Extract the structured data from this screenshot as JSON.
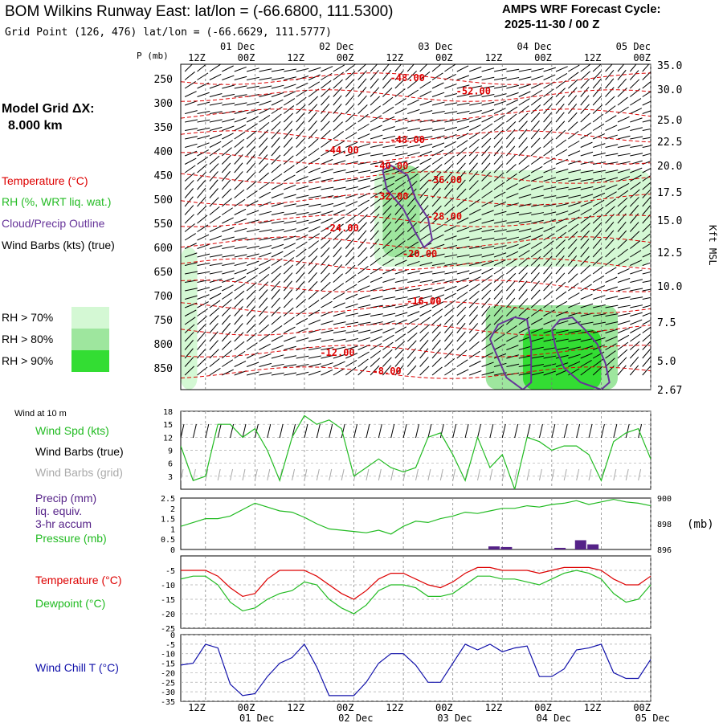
{
  "header": {
    "title": "BOM Wilkins Runway East:  lat/lon = (-66.6800, 111.5300)",
    "grid_point": "Grid Point (126, 476) lat/lon = (-66.6629, 111.5777)",
    "cycle_title": "AMPS WRF Forecast Cycle:",
    "cycle_value": "2025-11-30 / 00  Z",
    "grid_title": "Model Grid ΔX:",
    "grid_value": "8.000 km"
  },
  "legend": {
    "temperature": "Temperature (°C)",
    "rh": "RH (%, WRT liq. wat.)",
    "cloud": "Cloud/Precip Outline",
    "wind_barbs": "Wind Barbs (kts) (true)",
    "rh70": "RH > 70%",
    "rh80": "RH > 80%",
    "rh90": "RH > 90%"
  },
  "panel_labels": {
    "wind10": "Wind at 10 m",
    "wind_spd": "Wind Spd (kts)",
    "barbs_true": "Wind Barbs (true)",
    "barbs_grid": "Wind Barbs (grid)",
    "precip1": "Precip (mm)",
    "precip2": "liq. equiv.",
    "precip3": "3-hr accum",
    "pressure": "Pressure (mb)",
    "pressure_unit": "(mb)",
    "temperature": "Temperature (°C)",
    "dewpoint": "Dewpoint (°C)",
    "windchill": "Wind Chill T (°C)",
    "p_axis": "P (mb)",
    "height_axis": "Kft MSL"
  },
  "colors": {
    "temperature": "#dd0000",
    "rh70": "#d4f8d4",
    "rh80": "#9ee69e",
    "rh90": "#33dd33",
    "cloud": "#663399",
    "wind_spd": "#22bb22",
    "pressure": "#22bb22",
    "dewpoint": "#22bb22",
    "precip": "#552288",
    "windchill": "#1111aa",
    "barbs_grid": "#aaaaaa"
  },
  "chart_data": [
    {
      "type": "cross-section",
      "title": "Time-height cross-section",
      "xlim_hours": [
        6,
        120
      ],
      "time_labels": [
        {
          "h": 12,
          "top": "12Z",
          "bottom": ""
        },
        {
          "h": 24,
          "top": "00Z",
          "bottom": "01 Dec"
        },
        {
          "h": 36,
          "top": "12Z",
          "bottom": ""
        },
        {
          "h": 48,
          "top": "00Z",
          "bottom": "02 Dec"
        },
        {
          "h": 60,
          "top": "12Z",
          "bottom": ""
        },
        {
          "h": 72,
          "top": "00Z",
          "bottom": "03 Dec"
        },
        {
          "h": 84,
          "top": "12Z",
          "bottom": ""
        },
        {
          "h": 96,
          "top": "00Z",
          "bottom": "04 Dec"
        },
        {
          "h": 108,
          "top": "12Z",
          "bottom": ""
        },
        {
          "h": 120,
          "top": "00Z",
          "bottom": "05 Dec"
        }
      ],
      "pressure_ticks": [
        250,
        300,
        350,
        400,
        450,
        500,
        550,
        600,
        650,
        700,
        750,
        800,
        850
      ],
      "ylim_mb": [
        220,
        895
      ],
      "height_ticks": [
        {
          "p": 222,
          "label": "35.0"
        },
        {
          "p": 272,
          "label": "30.0"
        },
        {
          "p": 335,
          "label": "25.0"
        },
        {
          "p": 380,
          "label": "22.5"
        },
        {
          "p": 430,
          "label": "20.0"
        },
        {
          "p": 485,
          "label": "17.5"
        },
        {
          "p": 543,
          "label": "15.0"
        },
        {
          "p": 610,
          "label": "12.5"
        },
        {
          "p": 680,
          "label": "10.0"
        },
        {
          "p": 755,
          "label": "7.5"
        },
        {
          "p": 835,
          "label": "5.0"
        },
        {
          "p": 895,
          "label": "2.67"
        }
      ],
      "temperature_contours": [
        {
          "label": "-48.00",
          "h": 61,
          "p": 248
        },
        {
          "label": "-52.00",
          "h": 77,
          "p": 276
        },
        {
          "label": "-44.00",
          "h": 45,
          "p": 398
        },
        {
          "label": "-48.00",
          "h": 61,
          "p": 377
        },
        {
          "label": "-40.00",
          "h": 57,
          "p": 431
        },
        {
          "label": "-36.00",
          "h": 70,
          "p": 460
        },
        {
          "label": "-32.00",
          "h": 57,
          "p": 494
        },
        {
          "label": "-28.00",
          "h": 70,
          "p": 536
        },
        {
          "label": "-24.00",
          "h": 45,
          "p": 560
        },
        {
          "label": "-20.00",
          "h": 64,
          "p": 613
        },
        {
          "label": "-16.00",
          "h": 65,
          "p": 712
        },
        {
          "label": "-12.00",
          "h": 44,
          "p": 818
        },
        {
          "label": "-8.00",
          "h": 56,
          "p": 857
        }
      ],
      "rh_regions": [
        {
          "level": "rh90",
          "h1": 89,
          "h2": 108,
          "p1": 770,
          "p2": 895
        },
        {
          "level": "rh80",
          "h1": 80,
          "h2": 112,
          "p1": 720,
          "p2": 895
        },
        {
          "level": "rh80",
          "h1": 55,
          "h2": 64,
          "p1": 430,
          "p2": 620
        },
        {
          "level": "rh70",
          "h1": 53,
          "h2": 120,
          "p1": 440,
          "p2": 640
        },
        {
          "level": "rh70",
          "h1": 6,
          "h2": 10,
          "p1": 600,
          "p2": 895
        }
      ]
    },
    {
      "type": "line",
      "title": "Wind at 10 m",
      "ylabel": "Wind Spd (kts)",
      "ylim": [
        0,
        18
      ],
      "yticks": [
        3,
        6,
        9,
        12,
        15,
        18
      ],
      "x_hours": [
        6,
        9,
        12,
        15,
        18,
        21,
        24,
        27,
        30,
        33,
        36,
        39,
        42,
        45,
        48,
        51,
        54,
        57,
        60,
        63,
        66,
        69,
        72,
        75,
        78,
        81,
        84,
        87,
        90,
        93,
        96,
        99,
        102,
        105,
        108,
        111,
        114,
        117,
        120
      ],
      "series": [
        {
          "name": "Wind Spd",
          "values": [
            10,
            2,
            3,
            15,
            15,
            12,
            14,
            9,
            2,
            12,
            17,
            15,
            16,
            14,
            3,
            5,
            7,
            5,
            4,
            5,
            12,
            13,
            8,
            2,
            12,
            5,
            8,
            0,
            12,
            11,
            9,
            10,
            10,
            8,
            2,
            11,
            13,
            14,
            7
          ]
        }
      ]
    },
    {
      "type": "line+bar",
      "ylabel_left": "Precip (mm)",
      "ylabel_right": "Pressure (mb)",
      "precip_ylim": [
        0,
        2.5
      ],
      "precip_yticks": [
        0.0,
        0.5,
        1.0,
        1.5,
        2.0,
        2.5
      ],
      "pressure_ylim": [
        896,
        900
      ],
      "pressure_yticks": [
        896,
        898,
        900
      ],
      "x_hours": [
        6,
        9,
        12,
        15,
        18,
        21,
        24,
        27,
        30,
        33,
        36,
        39,
        42,
        45,
        48,
        51,
        54,
        57,
        60,
        63,
        66,
        69,
        72,
        75,
        78,
        81,
        84,
        87,
        90,
        93,
        96,
        99,
        102,
        105,
        108,
        111,
        114,
        117,
        120
      ],
      "pressure": [
        897.8,
        898.1,
        898.4,
        898.4,
        898.6,
        899.1,
        899.6,
        899.3,
        899.0,
        898.9,
        898.5,
        898.0,
        897.6,
        897.5,
        897.4,
        897.3,
        897.5,
        897.2,
        897.8,
        898.2,
        898.1,
        898.4,
        898.6,
        898.9,
        898.8,
        899.0,
        899.2,
        899.2,
        899.4,
        899.3,
        899.5,
        899.6,
        899.8,
        899.5,
        899.7,
        899.9,
        899.7,
        899.6,
        899.4
      ],
      "precip": [
        {
          "h": 82,
          "value": 0.15
        },
        {
          "h": 85,
          "value": 0.12
        },
        {
          "h": 98,
          "value": 0.08
        },
        {
          "h": 103,
          "value": 0.45
        },
        {
          "h": 106,
          "value": 0.25
        }
      ]
    },
    {
      "type": "line",
      "series": [
        {
          "name": "Temperature",
          "values": [
            -5,
            -5,
            -5,
            -7,
            -11,
            -14,
            -13,
            -8,
            -5,
            -5,
            -5,
            -7,
            -10,
            -13,
            -15,
            -12,
            -8,
            -6,
            -6,
            -8,
            -10,
            -11,
            -9,
            -6,
            -4,
            -4,
            -5,
            -5,
            -5,
            -6,
            -5,
            -4,
            -4,
            -4,
            -5,
            -8,
            -10,
            -10,
            -7
          ]
        },
        {
          "name": "Dewpoint",
          "values": [
            -8,
            -7,
            -7,
            -10,
            -16,
            -19,
            -18,
            -15,
            -13,
            -12,
            -9,
            -10,
            -15,
            -18,
            -20,
            -17,
            -12,
            -10,
            -10,
            -11,
            -14,
            -14,
            -13,
            -10,
            -7,
            -7,
            -8,
            -8,
            -9,
            -10,
            -8,
            -6,
            -5,
            -6,
            -8,
            -13,
            -16,
            -15,
            -10
          ]
        }
      ],
      "ylim": [
        -25,
        0
      ],
      "yticks": [
        -5,
        -10,
        -15,
        -20,
        -25
      ],
      "x_hours": [
        6,
        9,
        12,
        15,
        18,
        21,
        24,
        27,
        30,
        33,
        36,
        39,
        42,
        45,
        48,
        51,
        54,
        57,
        60,
        63,
        66,
        69,
        72,
        75,
        78,
        81,
        84,
        87,
        90,
        93,
        96,
        99,
        102,
        105,
        108,
        111,
        114,
        117,
        120
      ]
    },
    {
      "type": "line",
      "series": [
        {
          "name": "Wind Chill T",
          "values": [
            -16,
            -15,
            -5,
            -7,
            -26,
            -32,
            -31,
            -22,
            -15,
            -12,
            -5,
            -17,
            -32,
            -32,
            -32,
            -25,
            -15,
            -10,
            -10,
            -16,
            -25,
            -25,
            -15,
            -5,
            -8,
            -5,
            -9,
            -7,
            -6,
            -22,
            -22,
            -18,
            -8,
            -7,
            -5,
            -20,
            -23,
            -23,
            -13
          ]
        }
      ],
      "ylim": [
        -35,
        0
      ],
      "yticks": [
        0,
        -5,
        -10,
        -15,
        -20,
        -25,
        -30,
        -35
      ],
      "x_hours": [
        6,
        9,
        12,
        15,
        18,
        21,
        24,
        27,
        30,
        33,
        36,
        39,
        42,
        45,
        48,
        51,
        54,
        57,
        60,
        63,
        66,
        69,
        72,
        75,
        78,
        81,
        84,
        87,
        90,
        93,
        96,
        99,
        102,
        105,
        108,
        111,
        114,
        117,
        120
      ]
    }
  ]
}
